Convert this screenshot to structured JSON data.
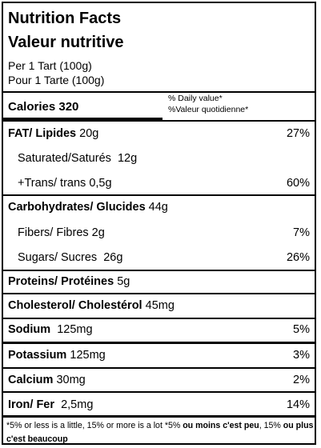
{
  "title_en": "Nutrition Facts",
  "title_fr": "Valeur nutritive",
  "serving_en": "Per 1 Tart  (100g)",
  "serving_fr": "Pour 1 Tarte (100g)",
  "calories_label": "Calories",
  "calories_value": "320",
  "daily_value_en": "% Daily value*",
  "daily_value_fr": "%Valeur quotidienne*",
  "rows": [
    {
      "label": "FAT/ Lipides",
      "amount": "20g",
      "percent": "27%"
    },
    {
      "label": "Saturated/Saturés",
      "amount": "12g",
      "percent": ""
    },
    {
      "label": "+Trans/ trans",
      "amount": "0,5g",
      "percent": "60%"
    },
    {
      "label": "Carbohydrates/ Glucides",
      "amount": "44g",
      "percent": ""
    },
    {
      "label": "Fibers/ Fibres",
      "amount": "2g",
      "percent": "7%"
    },
    {
      "label": "Sugars/ Sucres",
      "amount": "26g",
      "percent": "26%"
    },
    {
      "label": "Proteins/ Protéines",
      "amount": "5g",
      "percent": ""
    },
    {
      "label": "Cholesterol/ Cholestérol",
      "amount": "45mg",
      "percent": ""
    },
    {
      "label": "Sodium",
      "amount": "125mg",
      "percent": "5%"
    },
    {
      "label": "Potassium",
      "amount": "125mg",
      "percent": "3%"
    },
    {
      "label": "Calcium",
      "amount": "30mg",
      "percent": "2%"
    },
    {
      "label": "Iron/ Fer",
      "amount": "2,5mg",
      "percent": "14%"
    }
  ],
  "footnote_plain": "*5% or less is a little, 15% or more is a lot *5% ",
  "footnote_bold1": "ou moins c'est peu",
  "footnote_plain2": ", 15% ",
  "footnote_bold2": "ou plus c'est beaucoup"
}
